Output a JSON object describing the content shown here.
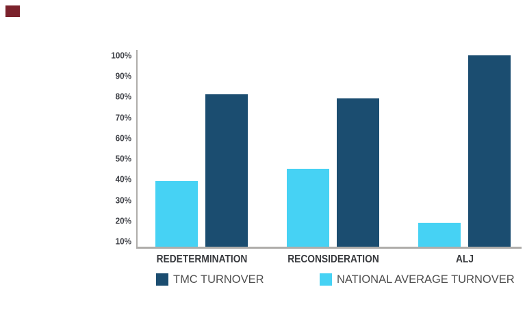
{
  "page": {
    "background": "#ffffff",
    "corner_mark": {
      "color": "#7B222C"
    }
  },
  "chart_data": {
    "type": "bar",
    "title": "",
    "xlabel": "",
    "ylabel": "",
    "categories": [
      "REDETERMINATION",
      "RECONSIDERATION",
      "ALJ"
    ],
    "series": [
      {
        "name": "TMC TURNOVER",
        "color": "#1B4D70",
        "values": [
          81,
          79,
          100
        ]
      },
      {
        "name": "NATIONAL AVERAGE TURNOVER",
        "color": "#46D2F4",
        "values": [
          39,
          45,
          19
        ]
      }
    ],
    "bar_order_in_group": [
      "NATIONAL AVERAGE TURNOVER",
      "TMC TURNOVER"
    ],
    "yticks": [
      "100%",
      "90%",
      "80%",
      "70%",
      "60%",
      "50%",
      "40%",
      "30%",
      "20%",
      "10%"
    ],
    "ylim": [
      7,
      100
    ],
    "grid": "off",
    "legend_position": "bottom",
    "axis_color": "#AFADAA",
    "tick_label_color": "#3F4147",
    "category_label_color": "#37393D",
    "legend_text_color": "#4E4E4E"
  }
}
